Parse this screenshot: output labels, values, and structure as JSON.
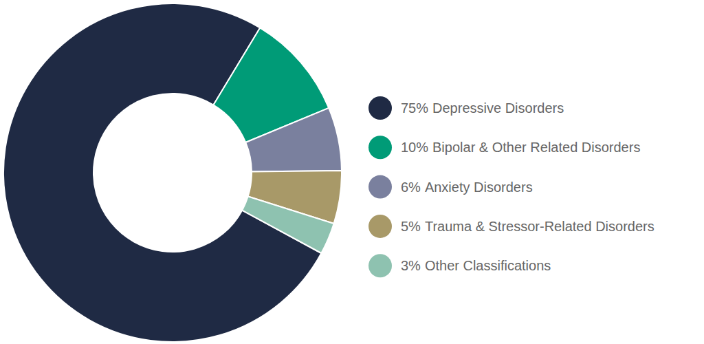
{
  "chart_data": {
    "type": "pie",
    "categories": [
      "Depressive Disorders",
      "Bipolar & Other Related Disorders",
      "Anxiety Disorders",
      "Trauma & Stressor-Related Disorders",
      "Other Classifications"
    ],
    "values": [
      75,
      10,
      6,
      5,
      3
    ],
    "value_labels": [
      "75%",
      "10%",
      "6%",
      "5%",
      "3%"
    ],
    "colors": [
      "#1f2a44",
      "#009b77",
      "#7a809e",
      "#a89968",
      "#8ec2b0"
    ],
    "legend": "right"
  }
}
